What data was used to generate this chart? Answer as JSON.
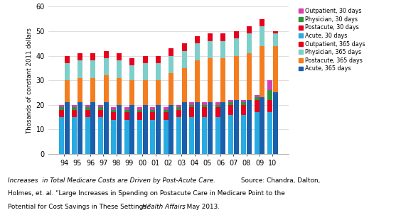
{
  "years": [
    "94",
    "95",
    "96",
    "97",
    "98",
    "99",
    "00",
    "01",
    "02",
    "03",
    "04",
    "05",
    "06",
    "07",
    "08",
    "09",
    "10"
  ],
  "colors": {
    "acute_365": "#1b5faa",
    "postacute_365": "#f47d1f",
    "physician_365": "#7ececa",
    "outpatient_365": "#e8001c",
    "acute_30": "#29abe2",
    "postacute_30": "#e8001c",
    "physician_30": "#2e933c",
    "outpatient_30": "#d63fad"
  },
  "data_365": {
    "acute": [
      21,
      21,
      21,
      21,
      20,
      20,
      20,
      20,
      20,
      21,
      21,
      21,
      21,
      22,
      22,
      23,
      25
    ],
    "postacute": [
      9,
      10,
      10,
      11,
      11,
      10,
      10,
      10,
      13,
      14,
      17,
      18,
      18,
      18,
      19,
      21,
      19
    ],
    "physician": [
      7,
      7,
      7,
      7,
      7,
      6,
      7,
      7,
      7,
      7,
      7,
      7,
      7,
      7,
      8,
      8,
      5
    ],
    "outpatient": [
      3,
      3,
      3,
      3,
      3,
      3,
      3,
      3,
      3,
      3,
      3,
      3,
      3,
      3,
      3,
      3,
      1
    ]
  },
  "data_30": {
    "acute": [
      15,
      15,
      15,
      15,
      14,
      14,
      14,
      14,
      14,
      15,
      15,
      15,
      15,
      16,
      16,
      17,
      17
    ],
    "postacute": [
      3,
      3,
      3,
      3,
      3,
      3,
      3,
      3,
      3,
      3,
      4,
      4,
      4,
      4,
      4,
      5,
      5
    ],
    "physician": [
      1,
      1,
      1,
      1,
      1,
      1,
      1,
      1,
      1,
      1,
      1,
      1,
      1,
      1,
      1,
      1,
      4
    ],
    "outpatient": [
      1,
      1,
      1,
      1,
      1,
      1,
      1,
      1,
      1,
      1,
      1,
      1,
      1,
      1,
      1,
      1,
      4
    ]
  },
  "ylabel": "Thosands of constant 2011 dollars",
  "ylim": [
    0,
    60
  ],
  "yticks": [
    0,
    10,
    20,
    30,
    40,
    50,
    60
  ],
  "bg_color": "#ffffff",
  "legend_labels": [
    "Outpatient, 30 days",
    "Physician, 30 days",
    "Postacute, 30 days",
    "Acute, 30 days",
    "Outpatient, 365 days",
    "Physician, 365 days",
    "Postacute, 365 days",
    "Acute, 365 days"
  ]
}
